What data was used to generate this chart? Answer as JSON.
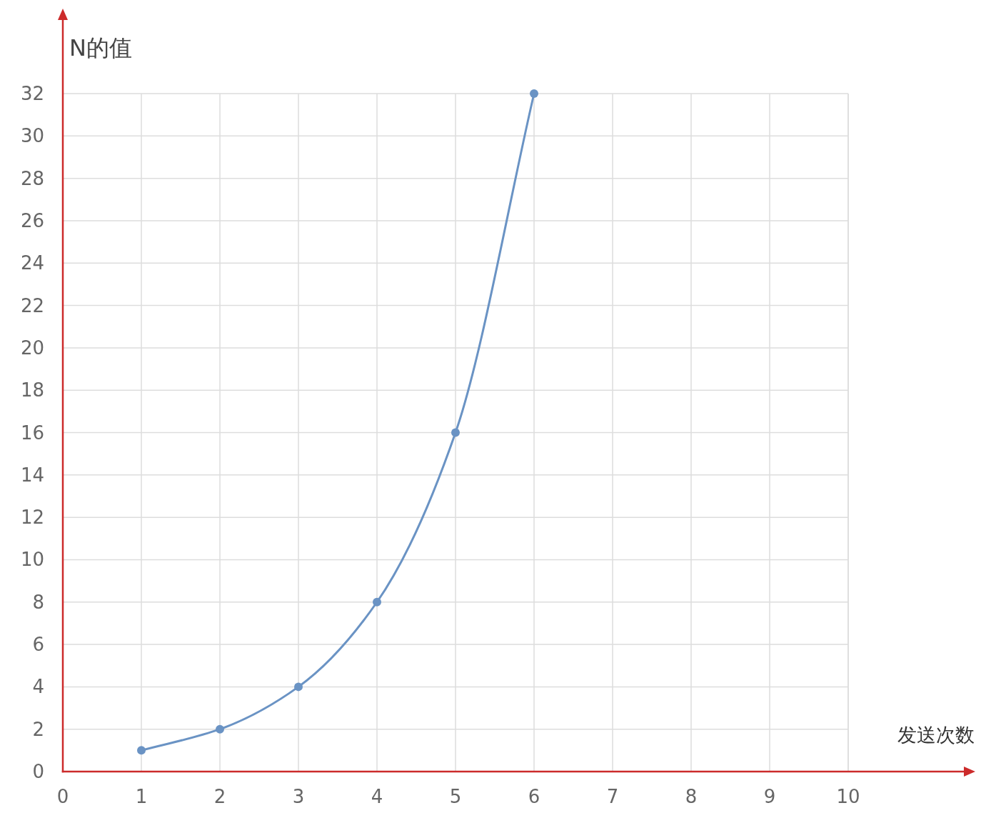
{
  "chart_data": {
    "type": "line",
    "xlabel": "发送次数",
    "ylabel": "N的值",
    "x": [
      1,
      2,
      3,
      4,
      5,
      6
    ],
    "series": [
      {
        "color": "#6a93c4",
        "values": [
          1,
          2,
          4,
          8,
          16,
          32
        ]
      }
    ],
    "xlim": [
      0,
      10
    ],
    "ylim": [
      0,
      32
    ],
    "xticks": [
      0,
      1,
      2,
      3,
      4,
      5,
      6,
      7,
      8,
      9,
      10
    ],
    "yticks": [
      0,
      2,
      4,
      6,
      8,
      10,
      12,
      14,
      16,
      18,
      20,
      22,
      24,
      26,
      28,
      30,
      32
    ],
    "grid": true,
    "marker": "circle",
    "line_style": "solid"
  }
}
